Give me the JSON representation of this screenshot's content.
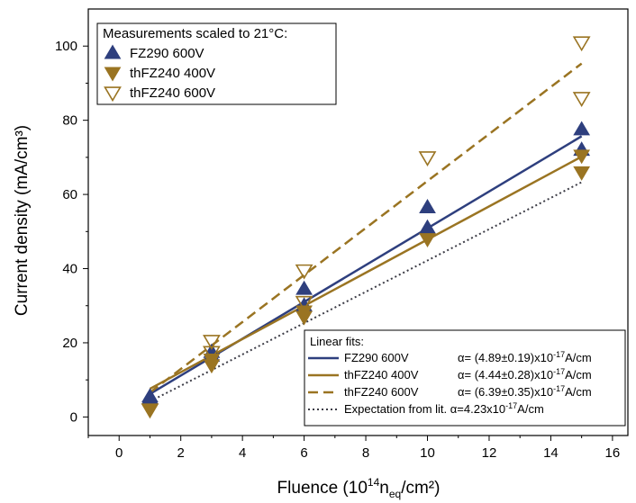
{
  "chart_data": {
    "type": "scatter",
    "xlabel": "Fluence (10",
    "xlabel_sup": "14",
    "xlabel_n": "n",
    "xlabel_sub": "eq",
    "xlabel_end": "/cm²)",
    "ylabel": "Current density (mA/cm³)",
    "xlim": [
      -1,
      16.5
    ],
    "ylim": [
      -5,
      110
    ],
    "xticks": [
      0,
      2,
      4,
      6,
      8,
      10,
      12,
      14,
      16
    ],
    "yticks": [
      0,
      20,
      40,
      60,
      80,
      100
    ],
    "grid": false,
    "legend_top": {
      "title": "Measurements scaled to 21°C:",
      "position": "top-left"
    },
    "series": [
      {
        "name": "FZ290 600V",
        "marker": "triangle-up-filled",
        "color": "#2e3f7e",
        "points": [
          [
            1,
            5.0
          ],
          [
            1,
            5.5
          ],
          [
            3,
            16.5
          ],
          [
            3,
            17.5
          ],
          [
            6,
            30.0
          ],
          [
            6,
            34.5
          ],
          [
            10,
            51.0
          ],
          [
            10,
            56.5
          ],
          [
            15,
            72.0
          ],
          [
            15,
            77.5
          ]
        ]
      },
      {
        "name": "thFZ240 400V",
        "marker": "triangle-down-filled",
        "color": "#9a7422",
        "points": [
          [
            1,
            2.0
          ],
          [
            3,
            14.0
          ],
          [
            3,
            15.5
          ],
          [
            6,
            27.0
          ],
          [
            6,
            28.5
          ],
          [
            10,
            48.0
          ],
          [
            15,
            66.0
          ],
          [
            15,
            70.5
          ]
        ]
      },
      {
        "name": "thFZ240 600V",
        "marker": "triangle-down-open",
        "color": "#9a7422",
        "points": [
          [
            1,
            2.0
          ],
          [
            3,
            17.5
          ],
          [
            3,
            20.5
          ],
          [
            6,
            31.0
          ],
          [
            6,
            39.5
          ],
          [
            10,
            70.0
          ],
          [
            15,
            86.0
          ],
          [
            15,
            101.0
          ]
        ]
      }
    ],
    "fits": {
      "title": "Linear fits:",
      "position": "bottom-right",
      "lines": [
        {
          "name": "FZ290 600V",
          "alpha_text": "α= (4.89±0.19)x10",
          "alpha_exp": "-17",
          "alpha_unit": "A/cm",
          "style": "solid",
          "color": "#2e3f7e",
          "from": [
            1,
            6.2
          ],
          "to": [
            15,
            75.7
          ]
        },
        {
          "name": "thFZ240 400V",
          "alpha_text": "α= (4.44±0.28)x10",
          "alpha_exp": "-17",
          "alpha_unit": "A/cm",
          "style": "solid",
          "color": "#9a7422",
          "from": [
            1,
            7.6
          ],
          "to": [
            15,
            70.2
          ]
        },
        {
          "name": "thFZ240 600V",
          "alpha_text": "α= (6.39±0.35)x10",
          "alpha_exp": "-17",
          "alpha_unit": "A/cm",
          "style": "dashed",
          "color": "#9a7422",
          "from": [
            1,
            6.6
          ],
          "to": [
            15,
            95.3
          ]
        },
        {
          "name": "Expectation from lit. α=4.23x10",
          "alpha_text": "",
          "alpha_exp": "-17",
          "alpha_unit": "A/cm",
          "style": "dotted",
          "color": "#3c3c46",
          "from": [
            1,
            4.2
          ],
          "to": [
            15,
            63.3
          ]
        }
      ]
    }
  }
}
